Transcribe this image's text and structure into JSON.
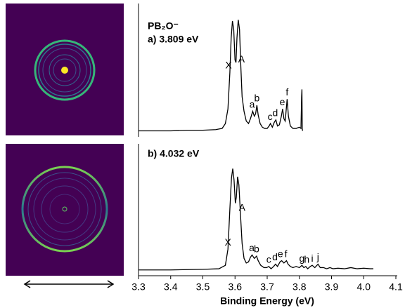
{
  "chart_data": [
    {
      "type": "line",
      "title": "PB₂O⁻",
      "subtitle": "a) 3.809 eV",
      "color": "#000000",
      "xlim": [
        3.3,
        4.1
      ],
      "ylim": [
        0,
        1
      ],
      "x": [
        3.3,
        3.35,
        3.4,
        3.45,
        3.5,
        3.54,
        3.56,
        3.57,
        3.578,
        3.584,
        3.588,
        3.592,
        3.596,
        3.6,
        3.603,
        3.606,
        3.61,
        3.614,
        3.618,
        3.622,
        3.628,
        3.635,
        3.642,
        3.648,
        3.655,
        3.66,
        3.664,
        3.668,
        3.672,
        3.678,
        3.685,
        3.692,
        3.7,
        3.706,
        3.71,
        3.716,
        3.722,
        3.727,
        3.732,
        3.738,
        3.744,
        3.748,
        3.752,
        3.756,
        3.762,
        3.766,
        3.772,
        3.78,
        3.79,
        3.8,
        3.805,
        3.807,
        3.808,
        3.809,
        3.81
      ],
      "values": [
        0.02,
        0.02,
        0.02,
        0.025,
        0.025,
        0.03,
        0.04,
        0.08,
        0.2,
        0.5,
        0.78,
        0.92,
        0.85,
        0.6,
        0.58,
        0.78,
        0.93,
        0.85,
        0.55,
        0.3,
        0.18,
        0.1,
        0.08,
        0.12,
        0.18,
        0.14,
        0.16,
        0.23,
        0.15,
        0.08,
        0.05,
        0.04,
        0.04,
        0.06,
        0.08,
        0.05,
        0.09,
        0.11,
        0.06,
        0.07,
        0.14,
        0.2,
        0.12,
        0.1,
        0.28,
        0.14,
        0.06,
        0.04,
        0.04,
        0.05,
        0.04,
        0.3,
        0.36,
        0.04,
        0.02
      ],
      "annotations": [
        {
          "text": "X",
          "x": 3.58
        },
        {
          "text": "A",
          "x": 3.62
        },
        {
          "text": "a",
          "x": 3.653
        },
        {
          "text": "b",
          "x": 3.668
        },
        {
          "text": "c",
          "x": 3.709
        },
        {
          "text": "d",
          "x": 3.725
        },
        {
          "text": "e",
          "x": 3.747
        },
        {
          "text": "f",
          "x": 3.762
        }
      ]
    },
    {
      "type": "line",
      "subtitle": "b) 4.032 eV",
      "color": "#000000",
      "x_label": "Binding Energy (eV)",
      "xlim": [
        3.3,
        4.1
      ],
      "ylim": [
        0,
        1
      ],
      "xticks": [
        3.3,
        3.4,
        3.5,
        3.6,
        3.7,
        3.8,
        3.9,
        {
          "value": 4,
          "label": "4.0"
        },
        4.1
      ],
      "x": [
        3.3,
        3.4,
        3.5,
        3.55,
        3.57,
        3.578,
        3.584,
        3.589,
        3.593,
        3.597,
        3.601,
        3.604,
        3.608,
        3.612,
        3.617,
        3.622,
        3.628,
        3.635,
        3.642,
        3.648,
        3.653,
        3.66,
        3.667,
        3.672,
        3.68,
        3.69,
        3.698,
        3.705,
        3.712,
        3.72,
        3.726,
        3.732,
        3.74,
        3.745,
        3.752,
        3.76,
        3.765,
        3.772,
        3.78,
        3.79,
        3.8,
        3.808,
        3.814,
        3.82,
        3.826,
        3.834,
        3.84,
        3.848,
        3.858,
        3.865,
        3.875,
        3.885,
        3.895,
        3.905,
        3.92,
        3.94,
        3.96,
        3.98,
        4.0,
        4.02,
        4.03
      ],
      "values": [
        0.02,
        0.02,
        0.025,
        0.03,
        0.06,
        0.2,
        0.55,
        0.82,
        0.9,
        0.8,
        0.6,
        0.65,
        0.83,
        0.76,
        0.5,
        0.25,
        0.12,
        0.08,
        0.09,
        0.13,
        0.15,
        0.12,
        0.14,
        0.1,
        0.06,
        0.04,
        0.04,
        0.05,
        0.03,
        0.05,
        0.07,
        0.05,
        0.09,
        0.1,
        0.08,
        0.1,
        0.07,
        0.05,
        0.04,
        0.05,
        0.04,
        0.06,
        0.04,
        0.05,
        0.03,
        0.05,
        0.06,
        0.04,
        0.07,
        0.04,
        0.04,
        0.03,
        0.04,
        0.03,
        0.035,
        0.03,
        0.04,
        0.03,
        0.035,
        0.03,
        0.03
      ],
      "annotations": [
        {
          "text": "X",
          "x": 3.578
        },
        {
          "text": "A",
          "x": 3.622
        },
        {
          "text": "a",
          "x": 3.652
        },
        {
          "text": "b",
          "x": 3.667
        },
        {
          "text": "c",
          "x": 3.705
        },
        {
          "text": "d",
          "x": 3.724
        },
        {
          "text": "e",
          "x": 3.741
        },
        {
          "text": "f",
          "x": 3.758
        },
        {
          "text": "g",
          "x": 3.808
        },
        {
          "text": "h",
          "x": 3.823
        },
        {
          "text": "i",
          "x": 3.84
        },
        {
          "text": "j",
          "x": 3.858
        }
      ]
    }
  ]
}
